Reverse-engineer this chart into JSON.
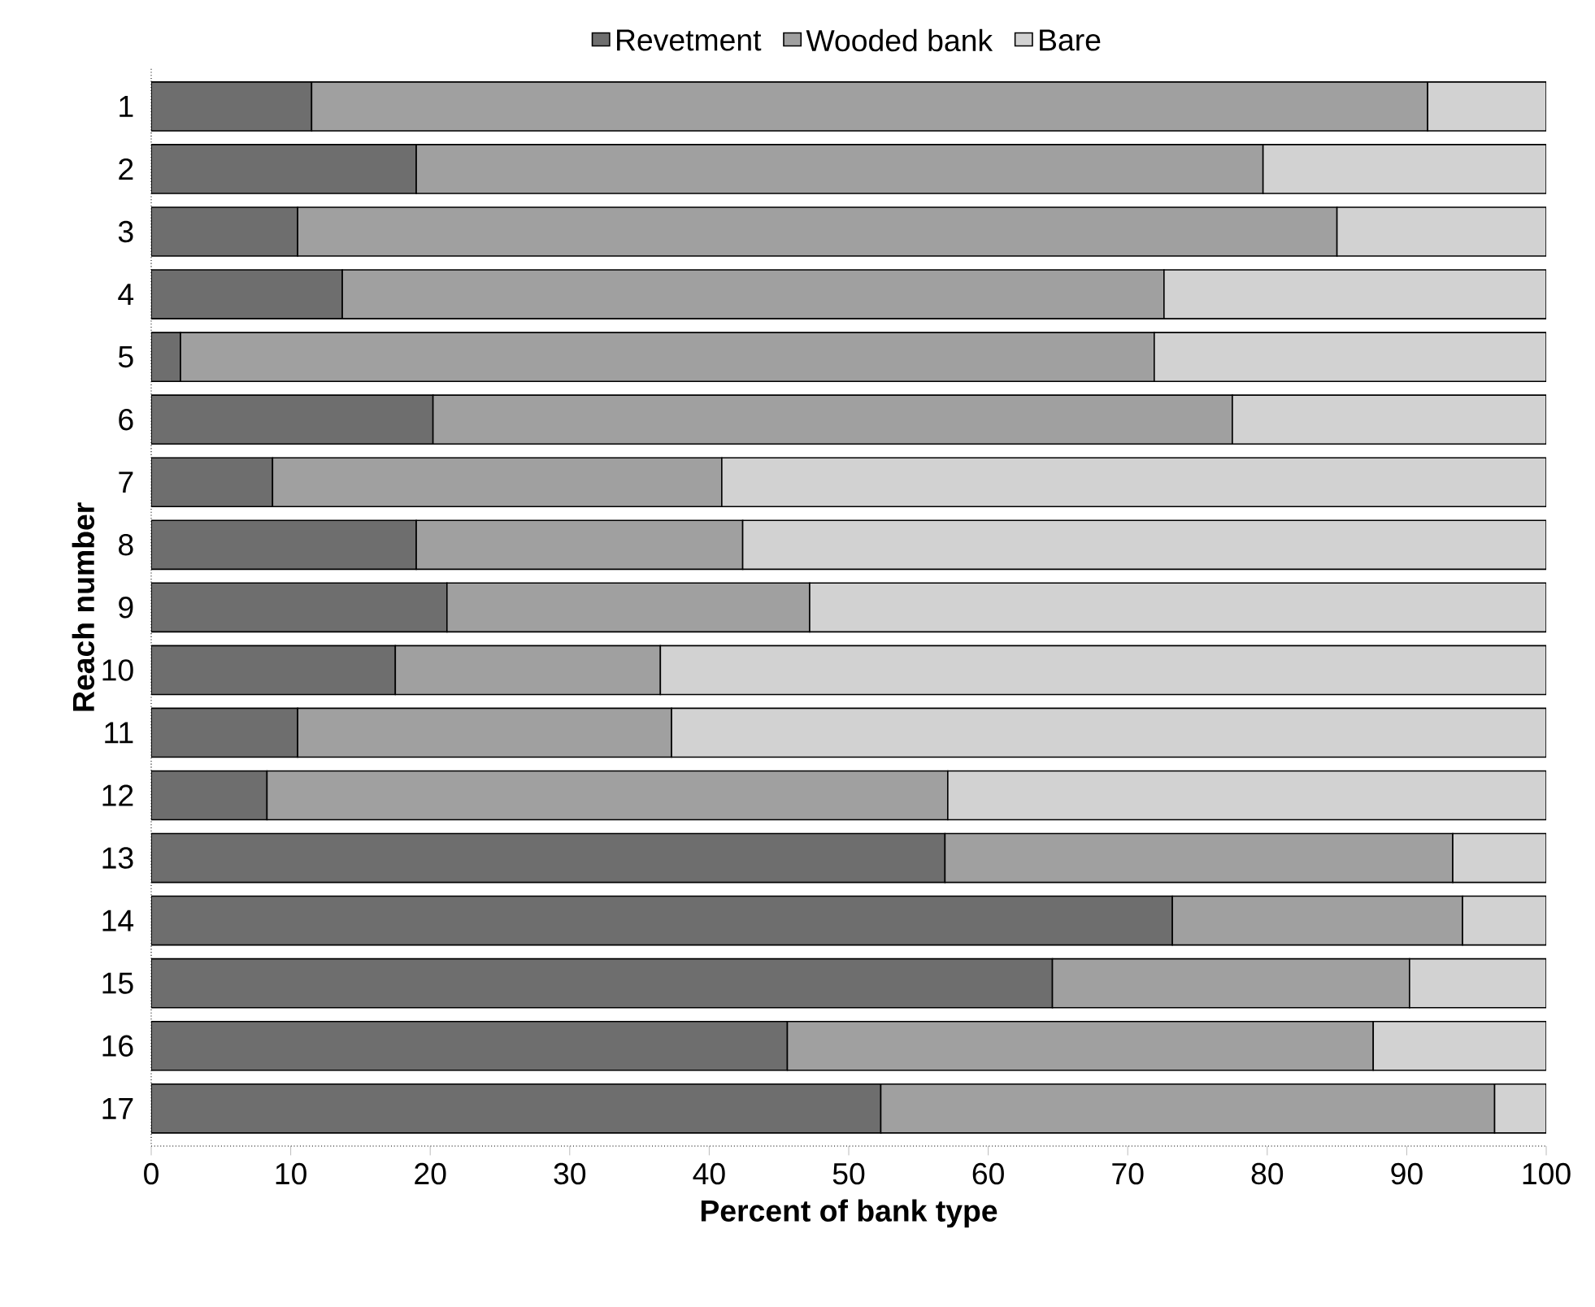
{
  "chart_data": {
    "type": "bar",
    "orientation": "horizontal",
    "stacked": true,
    "xlabel": "Percent of bank type",
    "ylabel": "Reach number",
    "categories": [
      "1",
      "2",
      "3",
      "4",
      "5",
      "6",
      "7",
      "8",
      "9",
      "10",
      "11",
      "12",
      "13",
      "14",
      "15",
      "16",
      "17"
    ],
    "series": [
      {
        "name": "Revetment",
        "color": "#6e6e6e",
        "values": [
          11.5,
          19.0,
          10.5,
          13.7,
          2.1,
          20.2,
          8.7,
          19.0,
          21.2,
          17.5,
          10.5,
          8.3,
          56.9,
          73.2,
          64.6,
          45.6,
          52.3
        ]
      },
      {
        "name": "Wooded bank",
        "color": "#a0a0a0",
        "values": [
          80.0,
          60.7,
          74.5,
          58.9,
          69.8,
          57.3,
          32.2,
          23.4,
          26.0,
          19.0,
          26.8,
          48.8,
          36.4,
          20.8,
          25.6,
          42.0,
          44.0
        ]
      },
      {
        "name": "Bare",
        "color": "#d2d2d2",
        "values": [
          8.5,
          20.3,
          15.0,
          27.4,
          28.1,
          22.5,
          59.1,
          57.6,
          52.8,
          63.5,
          62.7,
          42.9,
          6.7,
          6.0,
          9.8,
          12.4,
          3.7
        ]
      }
    ],
    "xlim": [
      0,
      100
    ],
    "xticks": [
      0,
      10,
      20,
      30,
      40,
      50,
      60,
      70,
      80,
      90,
      100
    ],
    "legend": "top",
    "grid": false
  }
}
